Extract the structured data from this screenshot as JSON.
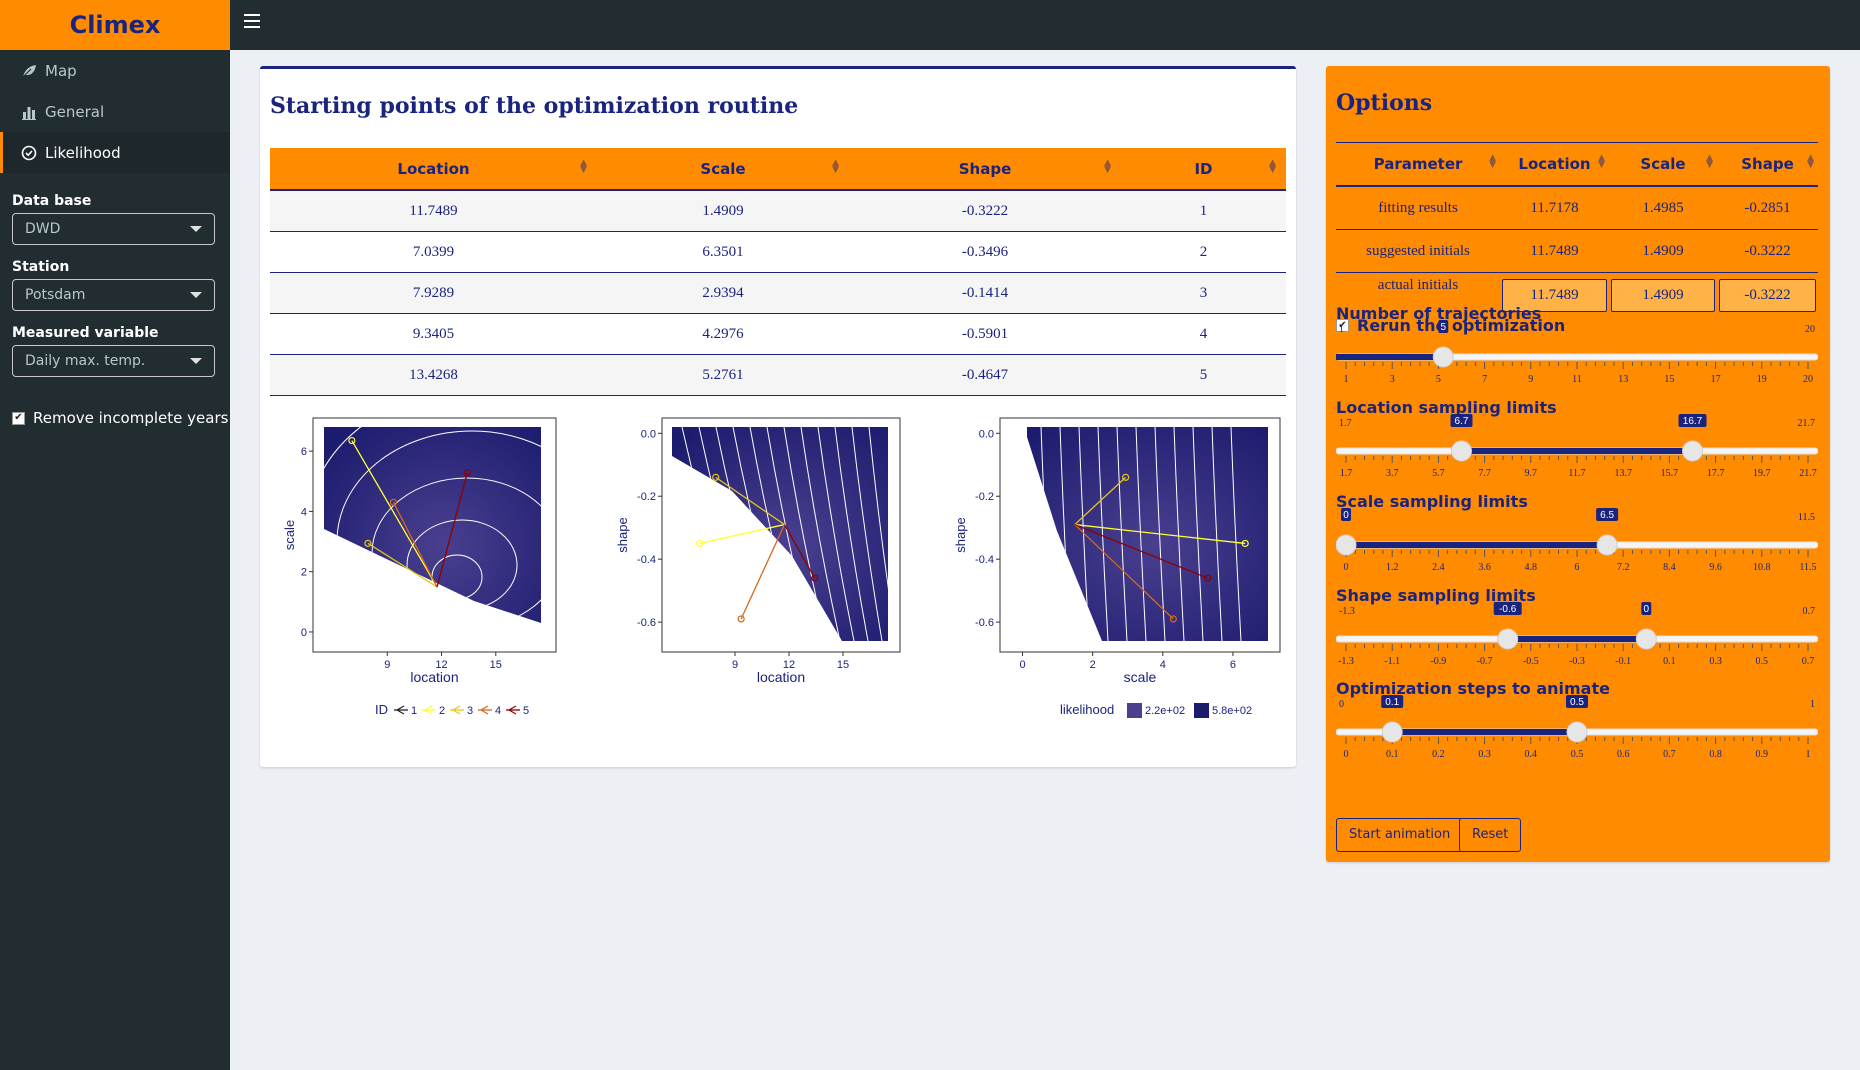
{
  "app": {
    "title": "Climex"
  },
  "sidebar": {
    "menu": [
      {
        "label": "Map",
        "icon": "leaf-icon"
      },
      {
        "label": "General",
        "icon": "bar-chart-icon"
      },
      {
        "label": "Likelihood",
        "icon": "check-circle-icon"
      }
    ],
    "database": {
      "label": "Data base",
      "value": "DWD"
    },
    "station": {
      "label": "Station",
      "value": "Potsdam"
    },
    "variable": {
      "label": "Measured variable",
      "value": "Daily max. temp."
    },
    "remove_incomplete": {
      "label": "Remove incomplete years",
      "checked": true
    }
  },
  "main": {
    "title": "Starting points of the optimization routine",
    "columns": [
      "Location",
      "Scale",
      "Shape",
      "ID"
    ],
    "rows": [
      [
        "11.7489",
        "1.4909",
        "-0.3222",
        "1"
      ],
      [
        "7.0399",
        "6.3501",
        "-0.3496",
        "2"
      ],
      [
        "7.9289",
        "2.9394",
        "-0.1414",
        "3"
      ],
      [
        "9.3405",
        "4.2976",
        "-0.5901",
        "4"
      ],
      [
        "13.4268",
        "5.2761",
        "-0.4647",
        "5"
      ]
    ]
  },
  "chart_data": [
    {
      "type": "line",
      "xlabel": "location",
      "ylabel": "scale",
      "xticks": [
        "9",
        "12",
        "15"
      ],
      "yticks": [
        "0",
        "2",
        "4",
        "6"
      ],
      "legend": {
        "title": "ID",
        "entries": [
          "1",
          "2",
          "3",
          "4",
          "5"
        ]
      },
      "series": [
        {
          "name": "2",
          "points": [
            [
              7.04,
              6.35
            ],
            [
              11.75,
              1.49
            ]
          ]
        },
        {
          "name": "3",
          "points": [
            [
              7.93,
              2.94
            ],
            [
              11.75,
              1.49
            ]
          ]
        },
        {
          "name": "4",
          "points": [
            [
              9.34,
              4.3
            ],
            [
              11.75,
              1.49
            ]
          ]
        },
        {
          "name": "5",
          "points": [
            [
              13.43,
              5.28
            ],
            [
              11.75,
              1.49
            ]
          ]
        }
      ]
    },
    {
      "type": "line",
      "xlabel": "location",
      "ylabel": "shape",
      "xticks": [
        "9",
        "12",
        "15"
      ],
      "yticks": [
        "0.0",
        "-0.2",
        "-0.4",
        "-0.6"
      ],
      "series": [
        {
          "name": "2",
          "points": [
            [
              7.04,
              -0.35
            ],
            [
              11.75,
              -0.29
            ]
          ]
        },
        {
          "name": "3",
          "points": [
            [
              7.93,
              -0.14
            ],
            [
              11.75,
              -0.29
            ]
          ]
        },
        {
          "name": "4",
          "points": [
            [
              9.34,
              -0.59
            ],
            [
              11.75,
              -0.29
            ]
          ]
        },
        {
          "name": "5",
          "points": [
            [
              13.43,
              -0.46
            ],
            [
              11.75,
              -0.29
            ]
          ]
        }
      ]
    },
    {
      "type": "line",
      "xlabel": "scale",
      "ylabel": "shape",
      "xticks": [
        "0",
        "2",
        "4",
        "6"
      ],
      "yticks": [
        "0.0",
        "-0.2",
        "-0.4",
        "-0.6"
      ],
      "legend": {
        "title": "likelihood",
        "entries": [
          "2.2e+02",
          "5.8e+02"
        ]
      },
      "series": [
        {
          "name": "2",
          "points": [
            [
              6.35,
              -0.35
            ],
            [
              1.49,
              -0.29
            ]
          ]
        },
        {
          "name": "3",
          "points": [
            [
              2.94,
              -0.14
            ],
            [
              1.49,
              -0.29
            ]
          ]
        },
        {
          "name": "4",
          "points": [
            [
              4.3,
              -0.59
            ],
            [
              1.49,
              -0.29
            ]
          ]
        },
        {
          "name": "5",
          "points": [
            [
              5.28,
              -0.46
            ],
            [
              1.49,
              -0.29
            ]
          ]
        }
      ]
    }
  ],
  "options": {
    "title": "Options",
    "columns": [
      "Parameter",
      "Location",
      "Scale",
      "Shape"
    ],
    "rows": [
      {
        "name": "fitting results",
        "values": [
          "11.7178",
          "1.4985",
          "-0.2851"
        ]
      },
      {
        "name": "suggested initials",
        "values": [
          "11.7489",
          "1.4909",
          "-0.3222"
        ]
      },
      {
        "name": "actual initials",
        "values": [
          "11.7489",
          "1.4909",
          "-0.3222"
        ]
      }
    ],
    "rerun": {
      "label": "Rerun the optimization",
      "checked": true
    },
    "sliders": [
      {
        "label": "Number of trajectories",
        "min": "1",
        "max": "20",
        "values": [
          "5"
        ],
        "ticks": [
          "1",
          "3",
          "5",
          "7",
          "9",
          "11",
          "13",
          "15",
          "17",
          "19",
          "20"
        ],
        "range": [
          1,
          20
        ],
        "num": [
          5
        ]
      },
      {
        "label": "Location sampling limits",
        "min": "1.7",
        "max": "21.7",
        "values": [
          "6.7",
          "16.7"
        ],
        "ticks": [
          "1.7",
          "3.7",
          "5.7",
          "7.7",
          "9.7",
          "11.7",
          "13.7",
          "15.7",
          "17.7",
          "19.7",
          "21.7"
        ],
        "range": [
          1.7,
          21.7
        ],
        "num": [
          6.7,
          16.7
        ]
      },
      {
        "label": "Scale sampling limits",
        "min": "",
        "max": "11.5",
        "values": [
          "0",
          "6.5"
        ],
        "ticks": [
          "0",
          "1.2",
          "2.4",
          "3.6",
          "4.8",
          "6",
          "7.2",
          "8.4",
          "9.6",
          "10.8",
          "11.5"
        ],
        "range": [
          0,
          11.5
        ],
        "num": [
          0,
          6.5
        ]
      },
      {
        "label": "Shape sampling limits",
        "min": "-1.3",
        "max": "0.7",
        "values": [
          "-0.6",
          "0"
        ],
        "ticks": [
          "-1.3",
          "-1.1",
          "-0.9",
          "-0.7",
          "-0.5",
          "-0.3",
          "-0.1",
          "0.1",
          "0.3",
          "0.5",
          "0.7"
        ],
        "range": [
          -1.3,
          0.7
        ],
        "num": [
          -0.6,
          0
        ]
      },
      {
        "label": "Optimization steps to animate",
        "min": "0",
        "max": "1",
        "values": [
          "0.1",
          "0.5"
        ],
        "ticks": [
          "0",
          "0.1",
          "0.2",
          "0.3",
          "0.4",
          "0.5",
          "0.6",
          "0.7",
          "0.8",
          "0.9",
          "1"
        ],
        "range": [
          0,
          1
        ],
        "num": [
          0.1,
          0.5
        ]
      }
    ],
    "buttons": {
      "start": "Start animation",
      "reset": "Reset"
    }
  },
  "colors": {
    "accent": "#ff8c00",
    "navy": "#1a237e",
    "sidebar": "#222d32",
    "series": [
      "#222222",
      "#ffff33",
      "#e6c619",
      "#d2691e",
      "#8b0000"
    ]
  }
}
